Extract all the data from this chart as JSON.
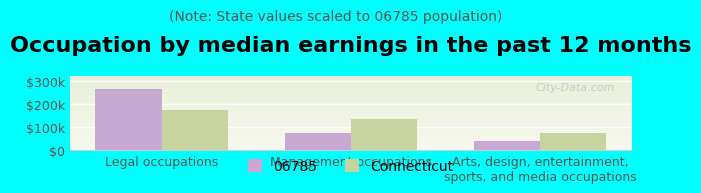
{
  "title": "Occupation by median earnings in the past 12 months",
  "subtitle": "(Note: State values scaled to 06785 population)",
  "categories": [
    "Legal occupations",
    "Management occupations",
    "Arts, design, entertainment,\nsports, and media occupations"
  ],
  "values_06785": [
    265000,
    75000,
    40000
  ],
  "values_connecticut": [
    175000,
    135000,
    72000
  ],
  "bar_color_06785": "#c9a8d4",
  "bar_color_connecticut": "#c8d4a0",
  "background_color": "#00ffff",
  "plot_bg_color_top": "#f5f5f0",
  "plot_bg_color_bottom": "#e8f0d8",
  "ylim": [
    0,
    320000
  ],
  "yticks": [
    0,
    100000,
    200000,
    300000
  ],
  "ytick_labels": [
    "$0",
    "$100k",
    "$200k",
    "$300k"
  ],
  "legend_06785": "06785",
  "legend_connecticut": "Connecticut",
  "watermark": "City-Data.com",
  "bar_width": 0.35,
  "title_fontsize": 16,
  "subtitle_fontsize": 10,
  "tick_fontsize": 9,
  "legend_fontsize": 10
}
